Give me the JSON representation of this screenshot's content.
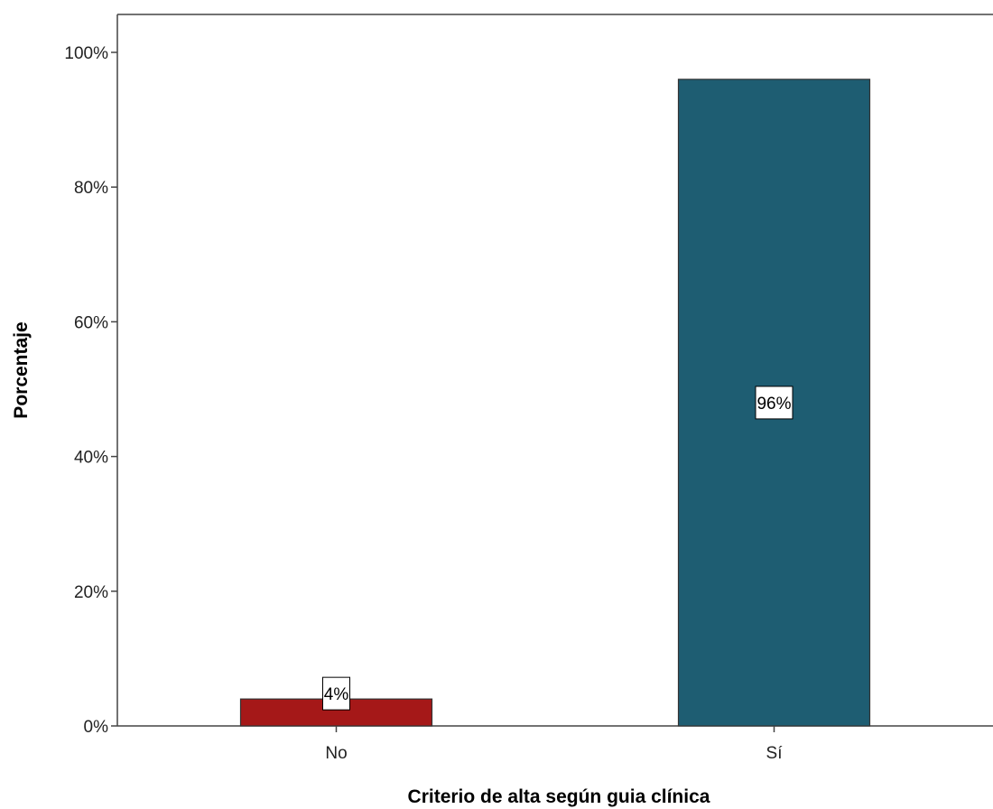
{
  "chart_data": {
    "type": "bar",
    "title": "",
    "xlabel": "Criterio de alta  según guia clínica",
    "ylabel": "Porcentaje",
    "categories": [
      "No",
      "Sí"
    ],
    "values": [
      4,
      96
    ],
    "data_labels": [
      "4%",
      "96%"
    ],
    "y_ticks": [
      "0%",
      "20%",
      "40%",
      "60%",
      "80%",
      "100%"
    ],
    "ylim": [
      0,
      100
    ],
    "grid": false,
    "legend": "none",
    "bar_colors": [
      "#a51818",
      "#1e5d72"
    ]
  }
}
